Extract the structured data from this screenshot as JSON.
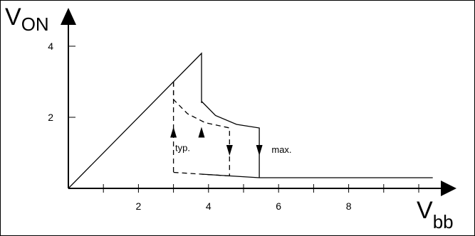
{
  "chart_data": {
    "type": "line",
    "ylabel_main": "V",
    "ylabel_sub": "ON",
    "xlabel_main": "V",
    "xlabel_sub": "bb",
    "xlim": [
      0,
      10.5
    ],
    "ylim": [
      0,
      4.7
    ],
    "x_ticks": [
      1,
      2,
      3,
      4,
      5,
      6,
      7,
      8,
      9,
      10
    ],
    "x_tick_labels": [
      {
        "x": 2,
        "label": "2"
      },
      {
        "x": 4,
        "label": "4"
      },
      {
        "x": 6,
        "label": "6"
      },
      {
        "x": 8,
        "label": "8"
      }
    ],
    "y_ticks": [
      {
        "y": 2,
        "label": "2"
      },
      {
        "y": 4,
        "label": "4"
      }
    ],
    "series": [
      {
        "name": "max.",
        "style": "solid",
        "segments": [
          [
            [
              0,
              0
            ],
            [
              3.8,
              3.8
            ],
            [
              3.8,
              2.4
            ]
          ],
          [
            [
              3.8,
              2.45
            ],
            [
              4.2,
              2.05
            ],
            [
              4.8,
              1.8
            ],
            [
              5.45,
              1.7
            ],
            [
              5.45,
              0.3
            ]
          ],
          [
            [
              3.8,
              0.4
            ],
            [
              5.45,
              0.3
            ],
            [
              10.4,
              0.3
            ]
          ]
        ]
      },
      {
        "name": "typ.",
        "style": "dashed",
        "segments": [
          [
            [
              3.0,
              3.0
            ],
            [
              3.0,
              2.5
            ],
            [
              3.4,
              2.1
            ],
            [
              3.9,
              1.85
            ],
            [
              4.6,
              1.7
            ],
            [
              4.6,
              0.35
            ]
          ],
          [
            [
              3.0,
              3.0
            ],
            [
              3.0,
              0.45
            ]
          ],
          [
            [
              3.0,
              0.45
            ],
            [
              3.8,
              0.4
            ],
            [
              4.6,
              0.35
            ]
          ]
        ]
      }
    ],
    "arrows": [
      {
        "x": 3.0,
        "y": 1.55,
        "direction": "up",
        "series": "typ."
      },
      {
        "x": 3.8,
        "y": 1.55,
        "direction": "up",
        "series": "max."
      },
      {
        "x": 4.6,
        "y": 1.1,
        "direction": "down",
        "series": "typ."
      },
      {
        "x": 5.45,
        "y": 1.1,
        "direction": "down",
        "series": "max."
      }
    ],
    "annotations": [
      {
        "text": "typ.",
        "x": 3.05,
        "y": 1.05
      },
      {
        "text": "max.",
        "x": 5.8,
        "y": 1.0
      }
    ],
    "grid": false
  }
}
